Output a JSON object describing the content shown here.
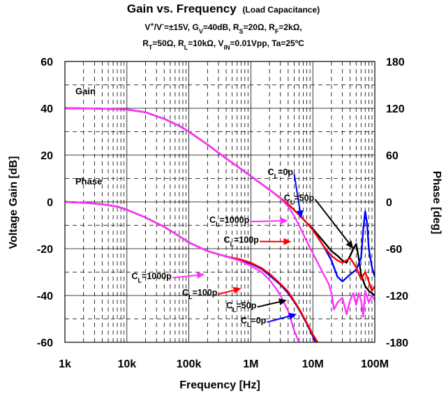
{
  "chart_data": {
    "type": "line",
    "title": "Gain vs. Frequency",
    "title_suffix": "(Load Capacitance)",
    "conditions_line1": [
      {
        "t": "V"
      },
      {
        "t": "+",
        "sup": true
      },
      {
        "t": "/V"
      },
      {
        "t": "-",
        "sup": true
      },
      {
        "t": "=±15V, G"
      },
      {
        "t": "V",
        "sub": true
      },
      {
        "t": "=40dB, R"
      },
      {
        "t": "S",
        "sub": true
      },
      {
        "t": "=20Ω, R"
      },
      {
        "t": "F",
        "sub": true
      },
      {
        "t": "=2kΩ,"
      }
    ],
    "conditions_line2": [
      {
        "t": "R"
      },
      {
        "t": "T",
        "sub": true
      },
      {
        "t": "=50Ω, R"
      },
      {
        "t": "L",
        "sub": true
      },
      {
        "t": "=10kΩ, V"
      },
      {
        "t": "IN",
        "sub": true
      },
      {
        "t": "=0.01Vpp, Ta=25ºC"
      }
    ],
    "xlabel": "Frequency [Hz]",
    "ylabel_left": "Voltage Gain [dB]",
    "ylabel_right": "Phase [deg]",
    "x_scale": "log",
    "xlim": [
      1000,
      100000000
    ],
    "x_ticks": [
      1000,
      10000,
      100000,
      1000000,
      10000000,
      100000000
    ],
    "x_tick_labels": [
      "1k",
      "10k",
      "100k",
      "1M",
      "10M",
      "100M"
    ],
    "ylim_left": [
      -60,
      60
    ],
    "y_left_ticks": [
      -60,
      -40,
      -20,
      0,
      20,
      40,
      60
    ],
    "y_left_tick_labels": [
      "-60",
      "-40",
      "-20",
      "0",
      "20",
      "40",
      "60"
    ],
    "ylim_right": [
      -180,
      180
    ],
    "y_right_ticks": [
      -180,
      -120,
      -60,
      0,
      60,
      120,
      180
    ],
    "y_right_tick_labels": [
      "-180",
      "-120",
      "-60",
      "0",
      "60",
      "120",
      "180"
    ],
    "grid": true,
    "gain_region_label": "Gain",
    "phase_region_label": "Phase",
    "series": [
      {
        "name": "CL=1000p",
        "label_main": "C",
        "label_sub": "L",
        "label_rest": "=1000p",
        "color": "#ff33ff",
        "gain": [
          [
            1000,
            40
          ],
          [
            3000,
            39.9
          ],
          [
            10000,
            39.5
          ],
          [
            20000,
            38.3
          ],
          [
            40000,
            35.5
          ],
          [
            70000,
            32.5
          ],
          [
            100000,
            30
          ],
          [
            200000,
            24.5
          ],
          [
            400000,
            18.5
          ],
          [
            700000,
            14
          ],
          [
            1000000,
            11
          ],
          [
            2000000,
            5.2
          ],
          [
            3000000,
            1.5
          ],
          [
            4000000,
            -2
          ],
          [
            5000000,
            -6
          ],
          [
            6000000,
            -10
          ],
          [
            8000000,
            -17
          ],
          [
            10000000,
            -22
          ],
          [
            12000000,
            -26
          ],
          [
            15000000,
            -31
          ],
          [
            18000000,
            -35
          ],
          [
            20000000,
            -39
          ],
          [
            22000000,
            -46
          ],
          [
            25000000,
            -43
          ],
          [
            30000000,
            -41
          ],
          [
            35000000,
            -48
          ],
          [
            40000000,
            -42
          ],
          [
            45000000,
            -39
          ],
          [
            50000000,
            -44
          ],
          [
            55000000,
            -39
          ],
          [
            60000000,
            -42
          ],
          [
            65000000,
            -49
          ],
          [
            70000000,
            -38
          ],
          [
            80000000,
            -43
          ],
          [
            90000000,
            -40
          ],
          [
            100000000,
            -42
          ]
        ],
        "phase": [
          [
            1000,
            0
          ],
          [
            2000,
            -1
          ],
          [
            4000,
            -3
          ],
          [
            7000,
            -6
          ],
          [
            10000,
            -10
          ],
          [
            20000,
            -20
          ],
          [
            40000,
            -32
          ],
          [
            70000,
            -44
          ],
          [
            100000,
            -52
          ],
          [
            200000,
            -63
          ],
          [
            400000,
            -70
          ],
          [
            700000,
            -76
          ],
          [
            1000000,
            -82
          ],
          [
            1500000,
            -90
          ],
          [
            2000000,
            -100
          ],
          [
            2500000,
            -110
          ],
          [
            3000000,
            -120
          ],
          [
            4000000,
            -140
          ],
          [
            5000000,
            -165
          ],
          [
            6000000,
            -180
          ]
        ]
      },
      {
        "name": "CL=100p",
        "label_main": "C",
        "label_sub": "L",
        "label_rest": "=100p",
        "color": "#ff0000",
        "gain": [
          [
            1000,
            40
          ],
          [
            3000,
            39.9
          ],
          [
            10000,
            39.5
          ],
          [
            20000,
            38.3
          ],
          [
            40000,
            35.5
          ],
          [
            70000,
            32.5
          ],
          [
            100000,
            30
          ],
          [
            200000,
            24.5
          ],
          [
            400000,
            18.5
          ],
          [
            700000,
            14
          ],
          [
            1000000,
            11
          ],
          [
            2000000,
            5.2
          ],
          [
            3000000,
            1.6
          ],
          [
            4000000,
            -1
          ],
          [
            5000000,
            -3.5
          ],
          [
            6000000,
            -5.5
          ],
          [
            8000000,
            -9
          ],
          [
            10000000,
            -12
          ],
          [
            12000000,
            -15
          ],
          [
            15000000,
            -19
          ],
          [
            20000000,
            -23
          ],
          [
            25000000,
            -25
          ],
          [
            30000000,
            -26
          ],
          [
            40000000,
            -24
          ],
          [
            50000000,
            -28
          ],
          [
            60000000,
            -33
          ],
          [
            70000000,
            -30
          ],
          [
            80000000,
            -34
          ],
          [
            90000000,
            -38
          ],
          [
            100000000,
            -36
          ]
        ],
        "phase": [
          [
            1000,
            0
          ],
          [
            2000,
            -1
          ],
          [
            4000,
            -3
          ],
          [
            7000,
            -6
          ],
          [
            10000,
            -10
          ],
          [
            20000,
            -20
          ],
          [
            40000,
            -32
          ],
          [
            70000,
            -44
          ],
          [
            100000,
            -52
          ],
          [
            200000,
            -63
          ],
          [
            400000,
            -70
          ],
          [
            700000,
            -74
          ],
          [
            1000000,
            -78
          ],
          [
            1500000,
            -85
          ],
          [
            2000000,
            -92
          ],
          [
            3000000,
            -105
          ],
          [
            4000000,
            -115
          ],
          [
            5000000,
            -127
          ],
          [
            6000000,
            -137
          ],
          [
            8000000,
            -155
          ],
          [
            10000000,
            -170
          ],
          [
            12000000,
            -180
          ]
        ]
      },
      {
        "name": "CL=50p",
        "label_main": "C",
        "label_sub": "L",
        "label_rest": "=50p",
        "color": "#000000",
        "gain": [
          [
            1000,
            40
          ],
          [
            3000,
            39.9
          ],
          [
            10000,
            39.5
          ],
          [
            20000,
            38.3
          ],
          [
            40000,
            35.5
          ],
          [
            70000,
            32.5
          ],
          [
            100000,
            30
          ],
          [
            200000,
            24.5
          ],
          [
            400000,
            18.5
          ],
          [
            700000,
            14
          ],
          [
            1000000,
            11
          ],
          [
            2000000,
            5.2
          ],
          [
            3000000,
            1.6
          ],
          [
            4000000,
            -1
          ],
          [
            5000000,
            -3.5
          ],
          [
            6000000,
            -5.5
          ],
          [
            8000000,
            -9
          ],
          [
            10000000,
            -11.5
          ],
          [
            12000000,
            -14
          ],
          [
            15000000,
            -17
          ],
          [
            20000000,
            -21
          ],
          [
            25000000,
            -23
          ],
          [
            30000000,
            -25
          ],
          [
            35000000,
            -26
          ],
          [
            40000000,
            -23
          ],
          [
            45000000,
            -20
          ],
          [
            50000000,
            -18
          ],
          [
            55000000,
            -24
          ],
          [
            60000000,
            -31
          ],
          [
            70000000,
            -36
          ],
          [
            80000000,
            -38
          ],
          [
            100000000,
            -40
          ]
        ],
        "phase": [
          [
            1000,
            0
          ],
          [
            2000,
            -1
          ],
          [
            4000,
            -3
          ],
          [
            7000,
            -6
          ],
          [
            10000,
            -10
          ],
          [
            20000,
            -20
          ],
          [
            40000,
            -32
          ],
          [
            70000,
            -44
          ],
          [
            100000,
            -52
          ],
          [
            200000,
            -63
          ],
          [
            400000,
            -70
          ],
          [
            700000,
            -75
          ],
          [
            1000000,
            -79
          ],
          [
            1500000,
            -86
          ],
          [
            2000000,
            -94
          ],
          [
            3000000,
            -106
          ],
          [
            4000000,
            -117
          ],
          [
            5000000,
            -128
          ],
          [
            6000000,
            -138
          ],
          [
            8000000,
            -156
          ],
          [
            10000000,
            -172
          ],
          [
            11000000,
            -180
          ]
        ]
      },
      {
        "name": "CL=0p",
        "label_main": "C",
        "label_sub": "L",
        "label_rest": "=0p",
        "color": "#0000ff",
        "gain": [
          [
            1000,
            40
          ],
          [
            3000,
            39.9
          ],
          [
            10000,
            39.5
          ],
          [
            20000,
            38.3
          ],
          [
            40000,
            35.5
          ],
          [
            70000,
            32.5
          ],
          [
            100000,
            30
          ],
          [
            200000,
            24.5
          ],
          [
            400000,
            18.5
          ],
          [
            700000,
            14
          ],
          [
            1000000,
            11
          ],
          [
            2000000,
            5.2
          ],
          [
            3000000,
            1.6
          ],
          [
            4000000,
            -1
          ],
          [
            5000000,
            -3.5
          ],
          [
            6000000,
            -5.5
          ],
          [
            8000000,
            -9
          ],
          [
            10000000,
            -12
          ],
          [
            12000000,
            -15
          ],
          [
            15000000,
            -19
          ],
          [
            20000000,
            -25
          ],
          [
            25000000,
            -32
          ],
          [
            30000000,
            -34
          ],
          [
            40000000,
            -31
          ],
          [
            50000000,
            -29
          ],
          [
            60000000,
            -24
          ],
          [
            65000000,
            -12
          ],
          [
            70000000,
            -4
          ],
          [
            75000000,
            -9
          ],
          [
            80000000,
            -20
          ],
          [
            90000000,
            -28
          ],
          [
            100000000,
            -32
          ]
        ],
        "phase": [
          [
            1000,
            0
          ],
          [
            2000,
            -1
          ],
          [
            4000,
            -3
          ],
          [
            7000,
            -6
          ],
          [
            10000,
            -10
          ],
          [
            20000,
            -20
          ],
          [
            40000,
            -32
          ],
          [
            70000,
            -44
          ],
          [
            100000,
            -52
          ],
          [
            200000,
            -63
          ],
          [
            400000,
            -70
          ],
          [
            700000,
            -75
          ],
          [
            1000000,
            -79
          ],
          [
            1500000,
            -86
          ],
          [
            2000000,
            -94
          ],
          [
            3000000,
            -106
          ],
          [
            4000000,
            -117
          ],
          [
            5000000,
            -128
          ],
          [
            6000000,
            -138
          ],
          [
            8000000,
            -156
          ],
          [
            10000000,
            -172
          ],
          [
            11000000,
            -180
          ]
        ]
      }
    ],
    "annotations": [
      {
        "series": 3,
        "part": "gain",
        "text_at": [
          3000000,
          11.5
        ],
        "arrow_to": [
          6500000,
          -7
        ]
      },
      {
        "series": 2,
        "part": "gain",
        "text_at": [
          6000000,
          0.5
        ],
        "arrow_to": [
          45000000,
          -20
        ]
      },
      {
        "series": 0,
        "part": "gain",
        "text_at": [
          450000,
          -9
        ],
        "arrow_to": [
          4000000,
          -8
        ]
      },
      {
        "series": 1,
        "part": "gain",
        "text_at": [
          700000,
          -17.5
        ],
        "arrow_to": [
          4500000,
          -17
        ]
      },
      {
        "series": 0,
        "part": "phase",
        "text_at": [
          25000,
          -33
        ],
        "arrow_to": [
          180000,
          -31
        ]
      },
      {
        "series": 1,
        "part": "phase",
        "text_at": [
          150000,
          -40
        ],
        "arrow_to": [
          700000,
          -37
        ]
      },
      {
        "series": 2,
        "part": "phase",
        "text_at": [
          700000,
          -45.5
        ],
        "arrow_to": [
          3800000,
          -42
        ]
      },
      {
        "series": 3,
        "part": "phase",
        "text_at": [
          1100000,
          -52
        ],
        "arrow_to": [
          5500000,
          -48
        ]
      }
    ]
  }
}
